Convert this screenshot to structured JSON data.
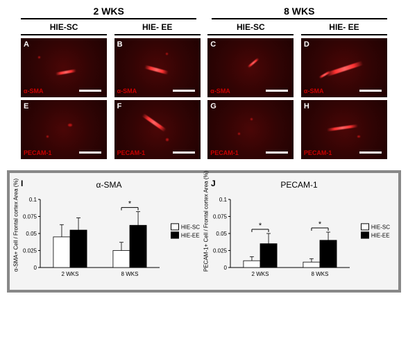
{
  "timepoints": {
    "left": "2 WKS",
    "right": "8  WKS"
  },
  "conditions": [
    "HIE-SC",
    "HIE- EE",
    "HIE-SC",
    "HIE- EE"
  ],
  "micrographs": {
    "letters": [
      "A",
      "B",
      "C",
      "D",
      "E",
      "F",
      "G",
      "H"
    ],
    "markers_row1": "α-SMA",
    "markers_row2": "PECAM-1",
    "bg_dark": "#200202",
    "bg_mid": "#320404",
    "signal_color": "#ff3232",
    "scalebar_color": "#ffffff"
  },
  "charts": {
    "ylabel_I": "α-SMA+ Cell / Frontal cortex Area (%)",
    "ylabel_J": "PECAM-1+ Cell / Frontal cortex Area (%)",
    "alpha_sma": {
      "letter": "I",
      "title": "α-SMA",
      "categories": [
        "2 WKS",
        "8 WKS"
      ],
      "series": [
        {
          "name": "HIE-SC",
          "color": "#ffffff",
          "values": [
            0.045,
            0.025
          ],
          "err": [
            0.018,
            0.012
          ]
        },
        {
          "name": "HIE-EE",
          "color": "#000000",
          "values": [
            0.055,
            0.062
          ],
          "err": [
            0.018,
            0.02
          ]
        }
      ],
      "ylim": [
        0,
        0.1
      ],
      "yticks": [
        0,
        0.025,
        0.05,
        0.075,
        0.1
      ],
      "sig": [
        {
          "group": 1,
          "label": "*"
        }
      ]
    },
    "pecam1": {
      "letter": "J",
      "title": "PECAM-1",
      "categories": [
        "2 WKS",
        "8 WKS"
      ],
      "series": [
        {
          "name": "HIE-SC",
          "color": "#ffffff",
          "values": [
            0.01,
            0.008
          ],
          "err": [
            0.006,
            0.005
          ]
        },
        {
          "name": "HIE-EE",
          "color": "#000000",
          "values": [
            0.035,
            0.04
          ],
          "err": [
            0.015,
            0.012
          ]
        }
      ],
      "ylim": [
        0,
        0.1
      ],
      "yticks": [
        0,
        0.025,
        0.05,
        0.075,
        0.1
      ],
      "sig": [
        {
          "group": 0,
          "label": "*"
        },
        {
          "group": 1,
          "label": "*"
        }
      ]
    },
    "legend": [
      "HIE-SC",
      "HIE-EE"
    ],
    "axis_fontsize": 8,
    "title_fontsize": 12
  }
}
